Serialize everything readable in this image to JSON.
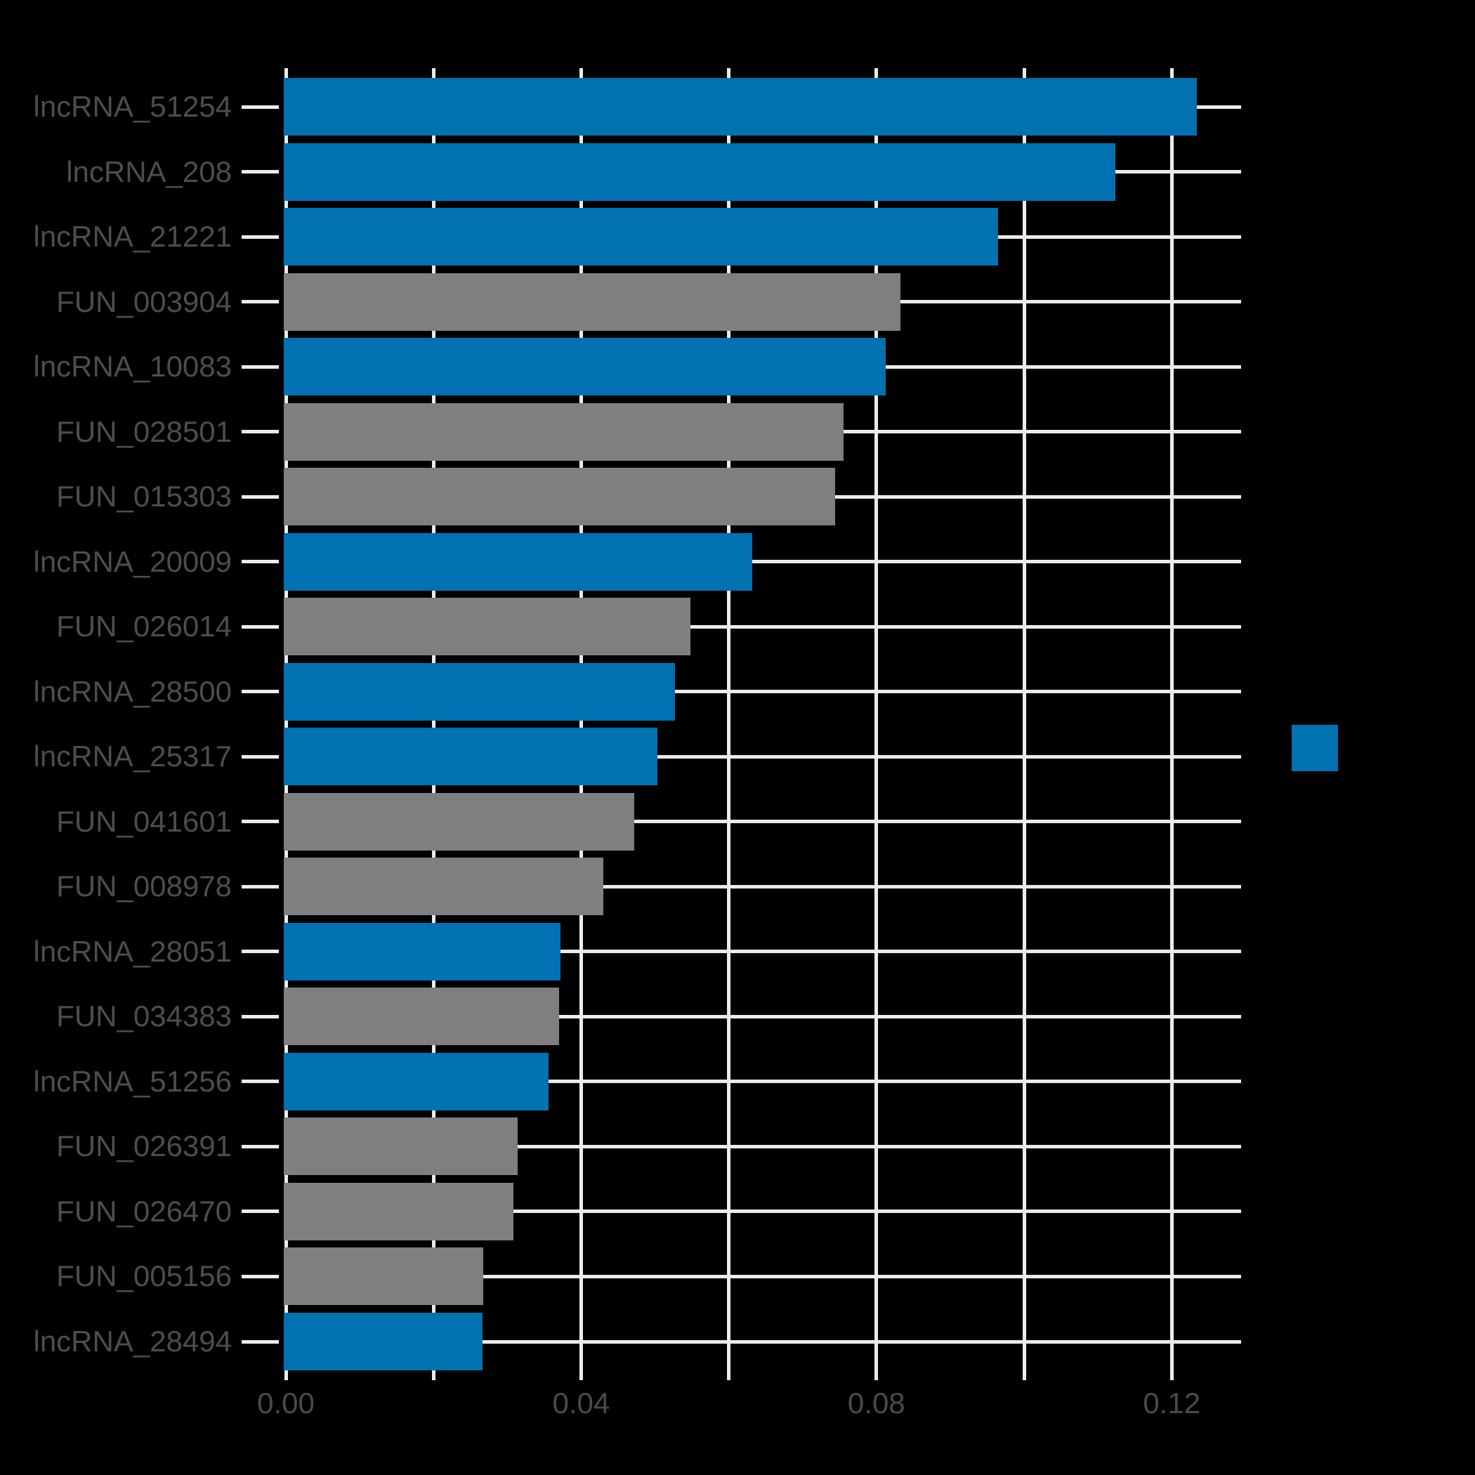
{
  "chart_data": {
    "type": "bar",
    "orientation": "horizontal",
    "title": "",
    "xlabel": "",
    "ylabel": "",
    "categories": [
      "lncRNA_51254",
      "lncRNA_208",
      "lncRNA_21221",
      "FUN_003904",
      "lncRNA_10083",
      "FUN_028501",
      "FUN_015303",
      "lncRNA_20009",
      "FUN_026014",
      "lncRNA_28500",
      "lncRNA_25317",
      "FUN_041601",
      "FUN_008978",
      "lncRNA_28051",
      "FUN_034383",
      "lncRNA_51256",
      "FUN_026391",
      "FUN_026470",
      "FUN_005156",
      "lncRNA_28494"
    ],
    "values": [
      0.1234,
      0.1124,
      0.0965,
      0.0833,
      0.0813,
      0.0755,
      0.0744,
      0.0632,
      0.0548,
      0.0527,
      0.0503,
      0.0472,
      0.043,
      0.0372,
      0.037,
      0.0356,
      0.0314,
      0.0308,
      0.0267,
      0.0266
    ],
    "groups": [
      "lncRNA",
      "lncRNA",
      "lncRNA",
      "FUN",
      "lncRNA",
      "FUN",
      "FUN",
      "lncRNA",
      "FUN",
      "lncRNA",
      "lncRNA",
      "FUN",
      "FUN",
      "lncRNA",
      "FUN",
      "lncRNA",
      "FUN",
      "FUN",
      "FUN",
      "lncRNA"
    ],
    "series_colors": {
      "lncRNA": "#0072B2",
      "FUN": "#7F7F7F"
    },
    "x_gridline_values": [
      0,
      0.02,
      0.04,
      0.06,
      0.08,
      0.1,
      0.12
    ],
    "x_tick_labels": [
      {
        "value": 0.0,
        "label": "0.00"
      },
      {
        "value": 0.04,
        "label": "0.04"
      },
      {
        "value": 0.08,
        "label": "0.08"
      },
      {
        "value": 0.12,
        "label": "0.12"
      }
    ],
    "xlim": [
      0,
      0.1294
    ],
    "grid": true,
    "gridline_every": 0.02,
    "label_every": 0.04,
    "legend": {
      "position": "right",
      "swatch_color": "#0072B2",
      "visible_entries": 1
    }
  },
  "colors": {
    "background": "#000000",
    "grid": "#EBEBEB",
    "bar_blue": "#0072B2",
    "bar_gray": "#7F7F7F",
    "axis_text": "#4A4A4A",
    "category_text": "#4D4D4D"
  }
}
